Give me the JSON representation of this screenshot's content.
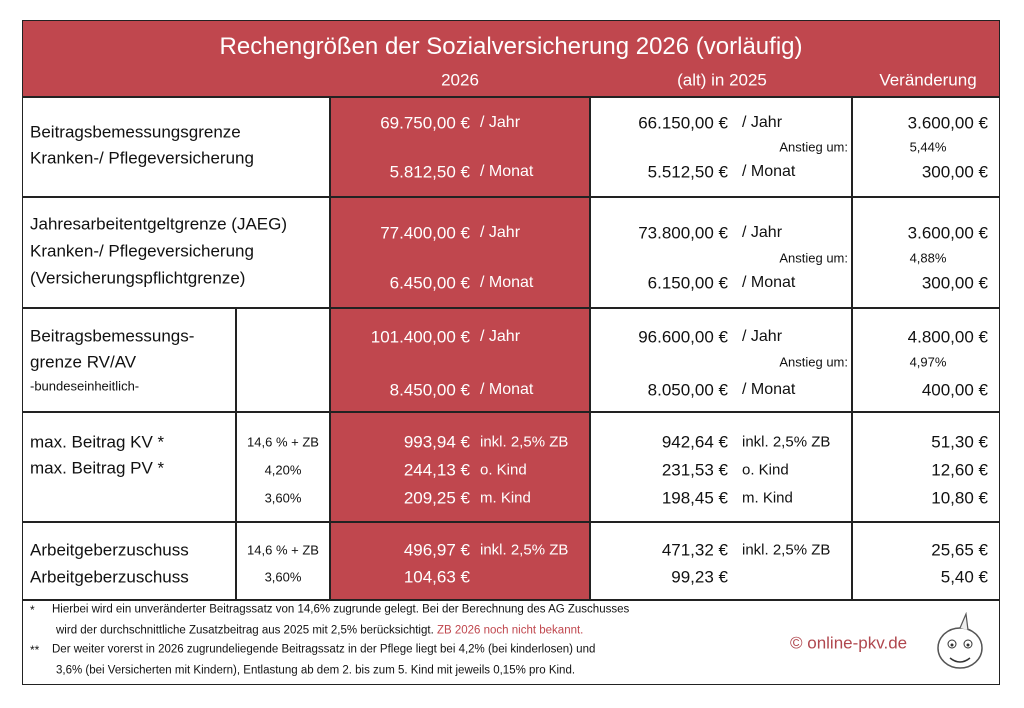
{
  "title": "Rechengrößen der Sozialversicherung 2026 (vorläufig)",
  "columns": [
    "2026",
    "(alt) in 2025",
    "Veränderung"
  ],
  "sections": [
    {
      "label": [
        "Beitragsbemessungsgrenze",
        "Kranken-/ Pflegeversicherung"
      ],
      "new": [
        [
          "69.750,00 €",
          "/ Jahr"
        ],
        [
          "5.812,50 €",
          "/ Monat"
        ]
      ],
      "old": [
        [
          "66.150,00 €",
          "/ Jahr"
        ],
        [
          "5.512,50 €",
          "/ Monat"
        ]
      ],
      "increase_label": "Anstieg um:",
      "increase": "5,44%",
      "change": [
        "3.600,00 €",
        "300,00 €"
      ]
    },
    {
      "label": [
        "Jahresarbeitentgeltgrenze (JAEG)",
        "Kranken-/ Pflegeversicherung",
        "(Versicherungspflichtgrenze)"
      ],
      "new": [
        [
          "77.400,00 €",
          "/ Jahr"
        ],
        [
          "6.450,00 €",
          "/ Monat"
        ]
      ],
      "old": [
        [
          "73.800,00 €",
          "/ Jahr"
        ],
        [
          "6.150,00 €",
          "/ Monat"
        ]
      ],
      "increase_label": "Anstieg um:",
      "increase": "4,88%",
      "change": [
        "3.600,00 €",
        "300,00 €"
      ]
    },
    {
      "label": [
        "Beitragsbemessungs-",
        "grenze RV/AV",
        "-bundeseinheitlich-"
      ],
      "new": [
        [
          "101.400,00 €",
          "/ Jahr"
        ],
        [
          "8.450,00 €",
          "/ Monat"
        ]
      ],
      "old": [
        [
          "96.600,00 €",
          "/ Jahr"
        ],
        [
          "8.050,00 €",
          "/ Monat"
        ]
      ],
      "increase_label": "Anstieg um:",
      "increase": "4,97%",
      "change": [
        "4.800,00 €",
        "400,00 €"
      ]
    },
    {
      "label": [
        "max. Beitrag KV *",
        "max. Beitrag PV *"
      ],
      "rates": [
        "14,6 % + ZB",
        "4,20%",
        "3,60%"
      ],
      "new": [
        [
          "993,94 €",
          "inkl. 2,5% ZB"
        ],
        [
          "244,13 €",
          "o. Kind"
        ],
        [
          "209,25 €",
          "m. Kind"
        ]
      ],
      "old": [
        [
          "942,64 €",
          "inkl. 2,5% ZB"
        ],
        [
          "231,53 €",
          "o. Kind"
        ],
        [
          "198,45 €",
          "m. Kind"
        ]
      ],
      "change": [
        "51,30 €",
        "12,60 €",
        "10,80 €"
      ]
    },
    {
      "label": [
        "Arbeitgeberzuschuss",
        "Arbeitgeberzuschuss"
      ],
      "rates": [
        "14,6 % + ZB",
        "3,60%"
      ],
      "new": [
        [
          "496,97 €",
          "inkl. 2,5% ZB"
        ],
        [
          "104,63 €"
        ]
      ],
      "old": [
        [
          "471,32 €",
          "inkl. 2,5% ZB"
        ],
        [
          "99,23 €"
        ]
      ],
      "change": [
        "25,65 €",
        "5,40 €"
      ]
    }
  ],
  "notes": [
    {
      "mark": "*",
      "lines": [
        "Hierbei wird ein unveränderter Beitragssatz von 14,6% zugrunde gelegt. Bei der Berechnung des AG Zuschusses",
        "wird der durchschnittliche Zusatzbeitrag aus 2025 mit 2,5% berücksichtigt."
      ],
      "highlight": "ZB 2026 noch nicht bekannt."
    },
    {
      "mark": "**",
      "lines": [
        "Der weiter vorerst in 2026 zugrundeliegende Beitragssatz in der Pflege liegt bei 4,2% (bei kinderlosen) und",
        "3,6% (bei Versicherten mit Kindern), Entlastung ab dem 2. bis zum 5. Kind mit jeweils 0,15% pro Kind."
      ]
    }
  ],
  "copyright": "© online-pkv.de"
}
